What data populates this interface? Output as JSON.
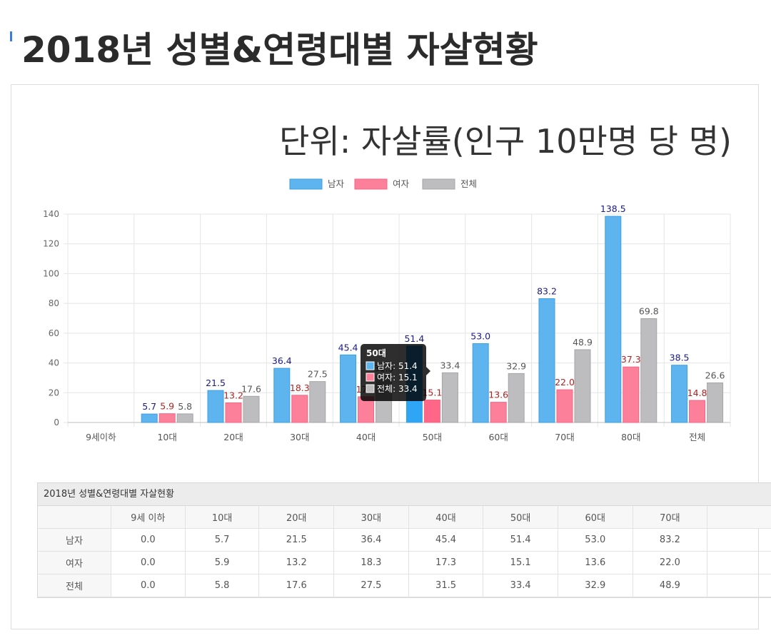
{
  "page": {
    "title": "2018년 성별&연령대별 자살현황",
    "unit": "단위: 자살률(인구 10만명 당 명)"
  },
  "colors": {
    "male": "#5eb4ee",
    "female": "#fd809a",
    "total": "#bdbdbf",
    "male_label": "#1a1a8c",
    "female_label": "#b22222",
    "total_label": "#555555"
  },
  "chart_data": {
    "type": "bar",
    "categories": [
      "9세이하",
      "10대",
      "20대",
      "30대",
      "40대",
      "50대",
      "60대",
      "70대",
      "80대",
      "전체"
    ],
    "series": [
      {
        "name": "남자",
        "values": [
          0.0,
          5.7,
          21.5,
          36.4,
          45.4,
          51.4,
          53.0,
          83.2,
          138.5,
          38.5
        ]
      },
      {
        "name": "여자",
        "values": [
          0.0,
          5.9,
          13.2,
          18.3,
          17.3,
          15.1,
          13.6,
          22.0,
          37.3,
          14.8
        ]
      },
      {
        "name": "전체",
        "values": [
          0.0,
          5.8,
          17.6,
          27.5,
          31.5,
          33.4,
          32.9,
          48.9,
          69.8,
          26.6
        ]
      }
    ],
    "value_labels_shown": [
      [
        "",
        "5.7",
        "21.5",
        "36.4",
        "45.4",
        "51.4",
        "53.0",
        "83.2",
        "138.5",
        "38.5"
      ],
      [
        "",
        "5.9",
        "13.2",
        "18.3",
        "17.3",
        "15.1",
        "13.6",
        "22.0",
        "37.3",
        "14.8"
      ],
      [
        "",
        "5.8",
        "17.6",
        "27.5",
        "31.5",
        "33.4",
        "32.9",
        "48.9",
        "69.8",
        "26.6"
      ]
    ],
    "ylim": [
      0,
      140
    ],
    "yticks": [
      "0",
      "20",
      "40",
      "60",
      "80",
      "100",
      "120",
      "140"
    ],
    "grid": true,
    "legend": "top-center",
    "tooltip": {
      "category_index": 5,
      "title": "50대",
      "lines": [
        "남자: 51.4",
        "여자: 15.1",
        "전체: 33.4"
      ]
    }
  },
  "table": {
    "caption": "2018년 성별&연령대별 자살현황",
    "headers": [
      "",
      "9세 이하",
      "10대",
      "20대",
      "30대",
      "40대",
      "50대",
      "60대",
      "70대",
      ""
    ],
    "rows": [
      {
        "label": "남자",
        "cells": [
          "0.0",
          "5.7",
          "21.5",
          "36.4",
          "45.4",
          "51.4",
          "53.0",
          "83.2",
          ""
        ]
      },
      {
        "label": "여자",
        "cells": [
          "0.0",
          "5.9",
          "13.2",
          "18.3",
          "17.3",
          "15.1",
          "13.6",
          "22.0",
          ""
        ]
      },
      {
        "label": "전체",
        "cells": [
          "0.0",
          "5.8",
          "17.6",
          "27.5",
          "31.5",
          "33.4",
          "32.9",
          "48.9",
          ""
        ]
      }
    ]
  }
}
